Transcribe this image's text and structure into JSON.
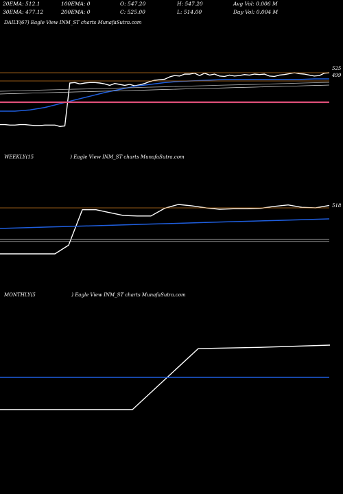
{
  "header": {
    "row1": [
      {
        "key": "ema20",
        "text": "20EMA: 512.1"
      },
      {
        "key": "ema100",
        "text": "100EMA: 0"
      },
      {
        "key": "open",
        "text": "O: 547.20"
      },
      {
        "key": "high",
        "text": "H: 547.20"
      },
      {
        "key": "avgvol",
        "text": "Avg Vol: 0.006  M"
      }
    ],
    "row2": [
      {
        "key": "ema30",
        "text": "30EMA: 477.12"
      },
      {
        "key": "ema200",
        "text": "200EMA: 0"
      },
      {
        "key": "close",
        "text": "C: 525.00"
      },
      {
        "key": "low",
        "text": "L: 514.00"
      },
      {
        "key": "dayvol",
        "text": "Day Vol: 0.004  M"
      }
    ]
  },
  "panels": {
    "daily": {
      "label_left": "DAILY(67) Eagle",
      "label_right": "View  INM_ST charts MunafaSutra.com"
    },
    "weekly": {
      "label_left": "WEEKLY(15",
      "label_right": ") Eagle   View  INM_ST charts MunafaSutra.com"
    },
    "monthly": {
      "label_left": "MONTHLY(5",
      "label_right": ") Eagle   View  INM_ST charts MunafaSutra.com"
    }
  },
  "colors": {
    "background": "#000000",
    "price": "#ffffff",
    "ema_blue": "#1f5fe0",
    "ema_gray": "#a0a0a0",
    "level_orange": "#c8781e",
    "level_pink": "#e0507a",
    "monthly_blue": "#4a90e2"
  },
  "chart_data": [
    {
      "type": "line",
      "panel": "daily",
      "price_labels": [
        "525",
        "499"
      ],
      "series": [
        {
          "role": "price",
          "values": [
            -10,
            -10,
            -11,
            -11,
            -10,
            -10,
            -11,
            -12,
            -12,
            -11,
            -11,
            -11,
            -14,
            -13,
            79,
            80,
            77,
            79,
            80,
            80,
            79,
            77,
            74,
            78,
            76,
            74,
            76,
            73,
            75,
            78,
            82,
            85,
            86,
            87,
            92,
            95,
            94,
            98,
            98,
            100,
            95,
            100,
            96,
            98,
            94,
            93,
            96,
            94,
            95,
            97,
            96,
            98,
            97,
            98,
            94,
            93,
            96,
            97,
            99,
            101,
            99,
            98,
            96,
            94,
            95,
            100,
            101
          ]
        },
        {
          "role": "ema-blue",
          "values": [
            40,
            40,
            42,
            46,
            52,
            58,
            64,
            70,
            75,
            80,
            83,
            86,
            88,
            89,
            90,
            91,
            91,
            91,
            91,
            91,
            91,
            92,
            92
          ]
        },
        {
          "role": "ema-gray",
          "values": [
            62,
            63,
            64,
            65,
            66,
            67,
            68,
            69,
            70,
            71,
            72,
            73,
            74,
            75,
            76,
            77,
            78,
            79,
            80,
            81,
            82,
            83,
            84
          ]
        },
        {
          "role": "level-orange",
          "values": [
            100,
            100
          ]
        },
        {
          "role": "level-orange",
          "values": [
            80,
            80
          ]
        },
        {
          "role": "level-pink",
          "values": [
            50,
            50
          ]
        }
      ]
    },
    {
      "type": "line",
      "panel": "weekly",
      "price_labels": [
        "518"
      ],
      "series": [
        {
          "role": "price",
          "values": [
            0,
            0,
            0,
            0,
            0,
            18,
            92,
            92,
            86,
            80,
            79,
            79,
            95,
            103,
            100,
            96,
            93,
            94,
            94,
            95,
            99,
            102,
            97,
            96,
            101
          ]
        },
        {
          "role": "ema-blue",
          "values": [
            60,
            61,
            62,
            63,
            64,
            65,
            66,
            67,
            68,
            69,
            70,
            71,
            72,
            73
          ]
        },
        {
          "role": "ema-gray",
          "values": [
            50,
            50
          ]
        },
        {
          "role": "level-orange",
          "values": [
            100,
            100
          ]
        }
      ]
    },
    {
      "type": "line",
      "panel": "monthly",
      "series": [
        {
          "role": "price",
          "values": [
            0,
            0,
            0,
            87,
            89,
            92
          ]
        },
        {
          "role": "ema-blue",
          "values": [
            50,
            50
          ]
        }
      ]
    }
  ]
}
